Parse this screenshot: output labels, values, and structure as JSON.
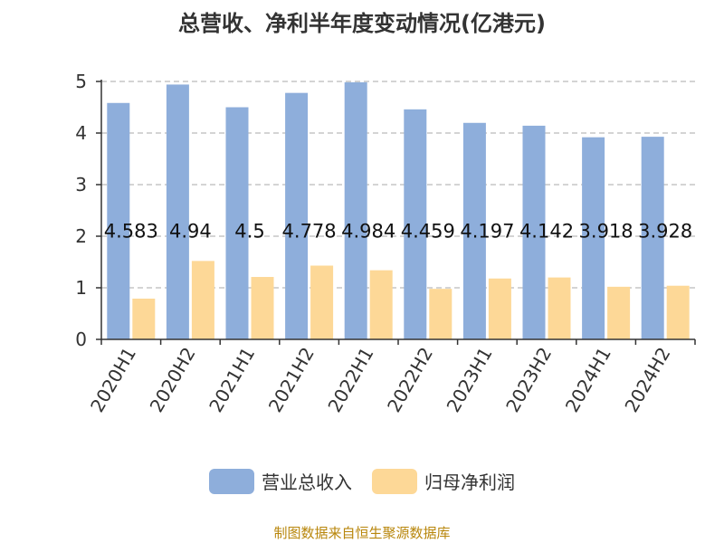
{
  "title": "总营收、净利半年度变动情况(亿港元)",
  "source_text": "制图数据来自恒生聚源数据库",
  "colors": {
    "series1": "#8eaedb",
    "series2": "#fdd897",
    "axis": "#333333",
    "grid": "#bbbbbb"
  },
  "legend": [
    {
      "label": "营业总收入",
      "color": "#8eaedb"
    },
    {
      "label": "归母净利润",
      "color": "#fdd897"
    }
  ],
  "chart_data": {
    "type": "bar",
    "title": "总营收、净利半年度变动情况(亿港元)",
    "categories": [
      "2020H1",
      "2020H2",
      "2021H1",
      "2021H2",
      "2022H1",
      "2022H2",
      "2023H1",
      "2023H2",
      "2024H1",
      "2024H2"
    ],
    "series": [
      {
        "name": "营业总收入",
        "values": [
          4.583,
          4.94,
          4.5,
          4.778,
          4.984,
          4.459,
          4.197,
          4.142,
          3.918,
          3.928
        ],
        "labels": [
          "4.583",
          "4.94",
          "4.5",
          "4.778",
          "4.984",
          "4.459",
          "4.197",
          "4.142",
          "3.918",
          "3.928"
        ]
      },
      {
        "name": "归母净利润",
        "values": [
          0.79,
          1.52,
          1.21,
          1.43,
          1.34,
          0.98,
          1.18,
          1.2,
          1.02,
          1.04
        ]
      }
    ],
    "yticks": [
      "0",
      "1",
      "2",
      "3",
      "4",
      "5"
    ],
    "ylim": [
      0,
      5
    ],
    "grid": true,
    "legend_position": "bottom"
  }
}
